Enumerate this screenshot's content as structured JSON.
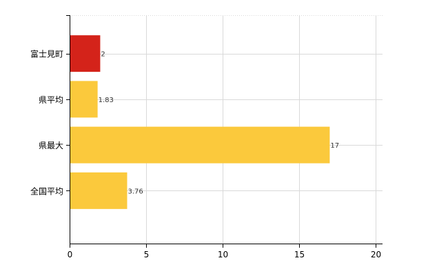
{
  "chart_data": {
    "type": "bar",
    "orientation": "horizontal",
    "title": "",
    "xlabel": "",
    "ylabel": "",
    "categories": [
      "富士見町",
      "県平均",
      "県最大",
      "全国平均"
    ],
    "values": [
      2,
      1.83,
      17,
      3.76
    ],
    "value_labels": [
      "2",
      "1.83",
      "17",
      "3.76"
    ],
    "colors": [
      "#d4231a",
      "#fbc93c",
      "#fbc93c",
      "#fbc93c"
    ],
    "xlim": [
      0,
      20
    ],
    "x_ticks": [
      "0",
      "5",
      "10",
      "15",
      "20"
    ],
    "grid": true,
    "legend": "none"
  }
}
